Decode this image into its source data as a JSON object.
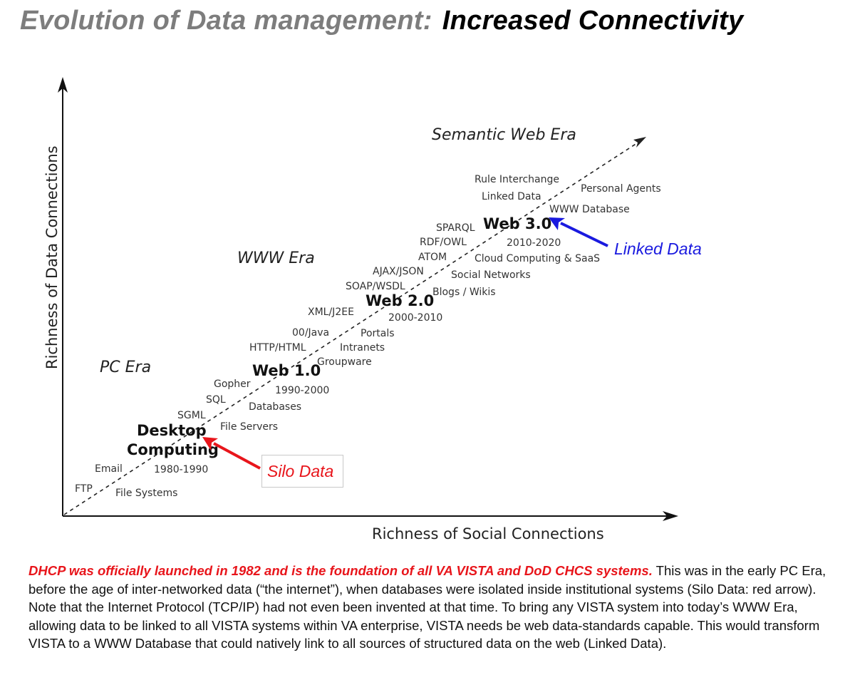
{
  "title": {
    "part1": "Evolution of Data management:",
    "part2": "Increased Connectivity"
  },
  "axes": {
    "y_label": "Richness of Data Connections",
    "x_label": "Richness of Social Connections"
  },
  "eras": {
    "pc": "PC Era",
    "www": "WWW Era",
    "semantic": "Semantic Web Era"
  },
  "milestones": {
    "desktop_line1": "Desktop",
    "desktop_line2": "Computing",
    "desktop_years": "1980-1990",
    "web1": "Web 1.0",
    "web1_years": "1990-2000",
    "web2": "Web 2.0",
    "web2_years": "2000-2010",
    "web3": "Web 3.0",
    "web3_years": "2010-2020"
  },
  "technologies": {
    "ftp": "FTP",
    "file_systems": "File Systems",
    "email": "Email",
    "sgml": "SGML",
    "file_servers": "File Servers",
    "sql": "SQL",
    "databases": "Databases",
    "gopher": "Gopher",
    "groupware": "Groupware",
    "http_html": "HTTP/HTML",
    "intranets": "Intranets",
    "oo_java": "00/Java",
    "portals": "Portals",
    "xml_j2ee": "XML/J2EE",
    "soap_wsdl": "SOAP/WSDL",
    "blogs_wikis": "Blogs / Wikis",
    "ajax_json": "AJAX/JSON",
    "social_networks": "Social Networks",
    "atom": "ATOM",
    "cloud": "Cloud Computing & SaaS",
    "rdf_owl": "RDF/OWL",
    "sparql": "SPARQL",
    "www_database": "WWW Database",
    "linked_data": "Linked Data",
    "personal_agents": "Personal Agents",
    "rule_interchange": "Rule Interchange"
  },
  "callouts": {
    "silo": "Silo Data",
    "linked": "Linked Data"
  },
  "colors": {
    "silo_arrow": "#e8151b",
    "linked_arrow": "#1a1adf"
  },
  "caption": {
    "lead": "DHCP was officially launched in 1982 and is the foundation of all VA VISTA and DoD CHCS systems.",
    "body": "This was in the early PC Era, before the age of  inter-networked data (“the internet”),  when databases were isolated inside institutional systems (Silo Data: red arrow).  Note that the Internet Protocol (TCP/IP) had not even been invented at that time.  To bring any VISTA system into today’s  WWW Era,  allowing data to be linked to all  VISTA systems within VA enterprise, VISTA needs be web data-standards capable. This would transform VISTA to a  WWW Database that could natively link to all sources of structured data on the web (Linked Data)."
  }
}
